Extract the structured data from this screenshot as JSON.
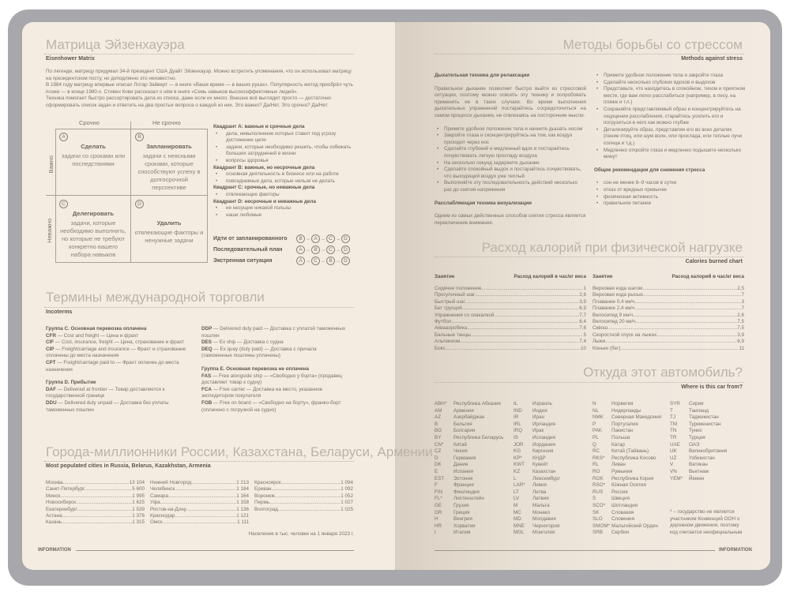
{
  "eisenhower": {
    "title": "Матрица Эйзенхауэра",
    "subtitle": "Eisenhower Matrix",
    "paragraphs": [
      "По легенде, матрицу придумал 34-й президент США Дуайт Эйзенхауэр. Можно встретить упоминания, что он использовал матрицу на президентском посту, но доподлинно это неизвестно.",
      "В 1984 году матрицу впервые описал Лотар Зайверт — в книге «Ваше время — в ваших руках». Популярность метод приобрёл чуть позже — в конце 1980-х. Стивен Кови рассказал о нём в книге «Семь навыков высокоэффективных людей».",
      "Техника помогает быстро рассортировать дела из списка, даже если их много. Внешне всё выглядит просто — достаточно сформировать список задач и ответить на два простых вопроса о каждой из них. Это важно? Да/Нет. Это срочно? Да/Нет"
    ],
    "col_labels": [
      "Срочно",
      "Не срочно"
    ],
    "row_labels": [
      "Важно",
      "Неважно"
    ],
    "quadrants": [
      {
        "letter": "A",
        "title": "Сделать",
        "text": "задачи со сроками или последствиями"
      },
      {
        "letter": "B",
        "title": "Запланировать",
        "text": "задачи с неясными сроками, которые способствуют успеху в долгосрочной перспективе"
      },
      {
        "letter": "C",
        "title": "Делегировать",
        "text": "задачи, которые необходимо выполнить, но которые не требуют конкретно вашего набора навыков"
      },
      {
        "letter": "D",
        "title": "Удалить",
        "text": "отвлекающие факторы и ненужные задачи"
      }
    ],
    "quadrant_notes": [
      {
        "title": "Квадрант А: важные и срочные дела",
        "items": [
          "дела, невыполнение которых ставит под угрозу достижение цели",
          "задачи, которые необходимо решить, чтобы избежать больших затруднений в жизни",
          "вопросы здоровья"
        ]
      },
      {
        "title": "Квадрант B: важные, но несрочные дела",
        "items": [
          "основная деятельность в бизнесе или на работе",
          "повседневные дела, которые нельзя не делать"
        ]
      },
      {
        "title": "Квадрант C: срочные, но неважные дела",
        "items": [
          "отвлекающие факторы"
        ]
      },
      {
        "title": "Квадрант D: несрочные и неважные дела",
        "items": [
          "не несущие никакой пользы",
          "наши любимые"
        ]
      }
    ],
    "sequences": [
      {
        "label": "Идти от запланированного",
        "order": [
          "B",
          "A",
          "C",
          "D"
        ]
      },
      {
        "label": "Последовательный план",
        "order": [
          "A",
          "B",
          "C",
          "D"
        ]
      },
      {
        "label": "Экстренная ситуация",
        "order": [
          "A",
          "C",
          "B",
          "D"
        ]
      }
    ]
  },
  "incoterms": {
    "title": "Термины международной торговли",
    "subtitle": "Incoterms",
    "left": [
      {
        "group": "Группа C. Основная перевозка оплачена"
      },
      {
        "code": "CFR",
        "text": " — Cost and freight — Цена и фрахт"
      },
      {
        "code": "CIF",
        "text": " — Cost, insurance, freight — Цена, страхование и фрахт"
      },
      {
        "code": "CIP",
        "text": " — Freight/carriage and insurance — Фрахт и страхование оплачены до места назначения"
      },
      {
        "code": "CPT",
        "text": " — Freight/carriage paid to — Фрахт оплачен до места назначения"
      },
      {
        "gap": true
      },
      {
        "group": "Группа D. Прибытие"
      },
      {
        "code": "DAF",
        "text": " — Delivered at frontier — Товар доставляется к государственной границе"
      },
      {
        "code": "DDU",
        "text": " — Delivered duty unpaid — Доставка без уплаты таможенных пошлин"
      }
    ],
    "right": [
      {
        "code": "DDP",
        "text": " — Delivered duty paid — Доставка с уплатой таможенных пошлин"
      },
      {
        "code": "DES",
        "text": " — Ex ship — Доставка с судна"
      },
      {
        "code": "DEQ",
        "text": " — Ex quay (duty paid) — Доставка с причала (таможенные пошлины уплачены)"
      },
      {
        "gap": true
      },
      {
        "group": "Группа E. Основная перевозка не оплачена"
      },
      {
        "code": "FAS",
        "text": " — Free alongside ship — «Свободно у борта» (продавец доставляет товар к судну)"
      },
      {
        "code": "FCA",
        "text": " — Free carrier — Доставка на место, указанное экспедитором покупателя"
      },
      {
        "code": "FOB",
        "text": " — Free on board — «Свободно на борту», франко-борт (оплачено с погрузкой на судно)"
      }
    ]
  },
  "cities": {
    "title": "Города-миллионники России, Казахстана, Беларуси, Армении",
    "subtitle": "Most populated cities in Russia, Belarus, Kazakhstan, Armenia",
    "columns": [
      [
        [
          "Москва",
          "13 104"
        ],
        [
          "Санкт-Петербург",
          "5 600"
        ],
        [
          "Минск",
          "1 995"
        ],
        [
          "Новосибирск",
          "1 625"
        ],
        [
          "Екатеринбург",
          "1 539"
        ],
        [
          "Астана",
          "1 376"
        ],
        [
          "Казань",
          "1 315"
        ]
      ],
      [
        [
          "Нижний Новгород",
          "1 213"
        ],
        [
          "Челябинск",
          "1 184"
        ],
        [
          "Самара",
          "1 164"
        ],
        [
          "Уфа",
          "1 158"
        ],
        [
          "Ростов-на-Дону",
          "1 136"
        ],
        [
          "Краснодар",
          "1 121"
        ],
        [
          "Омск",
          "1 111"
        ]
      ],
      [
        [
          "Красноярск",
          "1 094"
        ],
        [
          "Ереван",
          "1 092"
        ],
        [
          "Воронеж",
          "1 052"
        ],
        [
          "Пермь",
          "1 027"
        ],
        [
          "Волгоград",
          "1 025"
        ]
      ]
    ],
    "note": "Население в тыс. человек на 1 января 2023 г."
  },
  "stress": {
    "title": "Методы борьбы со стрессом",
    "subtitle": "Methods against stress",
    "breathing_title": "Дыхательная техника для релаксации",
    "breathing_intro": "Правильное дыхание позволяет быстро выйти из стрессовой ситуации, поэтому можно освоить эту технику и попробовать применить ее в таких случаях. Во время выполнения дыхательных упражнений постарайтесь сосредоточиться на самом процессе дыхания, не отвлекаясь на посторонние мысли.",
    "breathing_steps": [
      "Примите удобное положение тела и начните дышать носом",
      "Закройте глаза и сконцентрируйтесь на том, как воздух проходит через нос",
      "Сделайте глубокий и медленный вдох и постарайтесь почувствовать легкую прохладу воздуха",
      "На несколько секунд задержите дыхание",
      "Сделайте спокойный выдох и постарайтесь почувствовать, что выходящий воздух уже теплый",
      "Выполняйте эту последовательность действий несколько раз до снятия напряжения"
    ],
    "visual_title": "Расслабляющая техника визуализации",
    "visual_intro": "Одним из самых действенных способов снятия стресса является переключение внимания.",
    "visual_steps": [
      "Примите удобное положение тела и закройте глаза",
      "Сделайте несколько глубоких вдохов и выдохов",
      "Представьте, что находитесь в спокойном, тихом и приятном месте, где вам легко расслабиться (например, в лесу, на пляже и т.п.)",
      "Сохраняйте представляемый образ и концентрируйтесь на ощущении расслабления, старайтесь усилить его и погрузиться в него как можно глубже",
      "Детализируйте образ, представляя его во всех деталях (пение птиц, или шум волн, или прохлада, или теплые лучи солнца и т.д.)",
      "Медленно откройте глаза и медленно подышите несколько минут"
    ],
    "general_title": "Общие рекомендации для снижения стресса",
    "general": [
      "сон не менее 8–9 часов в сутки",
      "отказ от вредных привычек",
      "физическая активность",
      "правильное питание"
    ]
  },
  "calories": {
    "title": "Расход калорий при физической нагрузке",
    "subtitle": "Calories burned chart",
    "col_activity": "Занятие",
    "col_value": "Расход калорий в час/кг веса",
    "columns": [
      [
        [
          "Сидячее положение",
          "1"
        ],
        [
          "Прогулочный шаг",
          "2,6"
        ],
        [
          "Быстрый шаг",
          "3,9"
        ],
        [
          "Бег трусцой",
          "6,9"
        ],
        [
          "Упражнения со скакалкой",
          "7,7"
        ],
        [
          "Футбол",
          "6,4"
        ],
        [
          "Аквааэробика",
          "7,6"
        ],
        [
          "Бальные танцы",
          "5"
        ],
        [
          "Альпинизм",
          "7,4"
        ],
        [
          "Бокс",
          "10"
        ]
      ],
      [
        [
          "Верховая езда шагом",
          "2,5"
        ],
        [
          "Верховая езда рысью",
          "7"
        ],
        [
          "Плавание 0,4 км/ч",
          "3"
        ],
        [
          "Плавание 2,4 км/ч",
          "7"
        ],
        [
          "Велосипед 9 км/ч",
          "2,6"
        ],
        [
          "Велосипед 20 км/ч",
          "7,5"
        ],
        [
          "Сквош",
          "7,5"
        ],
        [
          "Скоростной спуск на лыжах",
          "3,9"
        ],
        [
          "Лыжи",
          "6,9"
        ],
        [
          "Коньки (бег)",
          "11"
        ]
      ]
    ]
  },
  "cars": {
    "title": "Откуда этот автомобиль?",
    "subtitle": "Where is this car from?",
    "columns": [
      [
        [
          "ABH*",
          "Республика Абхазия"
        ],
        [
          "AM",
          "Армения"
        ],
        [
          "AZ",
          "Азербайджан"
        ],
        [
          "B",
          "Бельгия"
        ],
        [
          "BG",
          "Болгария"
        ],
        [
          "BY",
          "Республика Беларусь"
        ],
        [
          "CN*",
          "Китай"
        ],
        [
          "CZ",
          "Чехия"
        ],
        [
          "D",
          "Германия"
        ],
        [
          "DK",
          "Дания"
        ],
        [
          "E",
          "Испания"
        ],
        [
          "EST",
          "Эстония"
        ],
        [
          "F",
          "Франция"
        ],
        [
          "FIN",
          "Финляндия"
        ],
        [
          "FL*",
          "Лихтенштейн"
        ],
        [
          "GE",
          "Грузия"
        ],
        [
          "GR",
          "Греция"
        ],
        [
          "H",
          "Венгрия"
        ],
        [
          "HR",
          "Хорватия"
        ],
        [
          "I",
          "Италия"
        ]
      ],
      [
        [
          "IL",
          "Израиль"
        ],
        [
          "IND",
          "Индия"
        ],
        [
          "IR",
          "Иран"
        ],
        [
          "IRL",
          "Ирландия"
        ],
        [
          "IRQ",
          "Ирак"
        ],
        [
          "IS",
          "Исландия"
        ],
        [
          "JOR",
          "Иордания"
        ],
        [
          "KG",
          "Киргизия"
        ],
        [
          "KP*",
          "КНДР"
        ],
        [
          "KWT",
          "Кувейт"
        ],
        [
          "KZ",
          "Казахстан"
        ],
        [
          "L",
          "Люксембург"
        ],
        [
          "LAR*",
          "Ливия"
        ],
        [
          "LT",
          "Литва"
        ],
        [
          "LV",
          "Латвия"
        ],
        [
          "M",
          "Мальта"
        ],
        [
          "MC",
          "Монако"
        ],
        [
          "MD",
          "Молдавия"
        ],
        [
          "MNE",
          "Черногория"
        ],
        [
          "MGL",
          "Монголия"
        ]
      ],
      [
        [
          "N",
          "Норвегия"
        ],
        [
          "NL",
          "Нидерланды"
        ],
        [
          "NMK",
          "Северная Македония"
        ],
        [
          "P",
          "Португалия"
        ],
        [
          "PAK",
          "Пакистан"
        ],
        [
          "PL",
          "Польша"
        ],
        [
          "Q",
          "Катар"
        ],
        [
          "RC",
          "Китай (Тайвань)"
        ],
        [
          "RKS*",
          "Республика Косово"
        ],
        [
          "RL",
          "Ливан"
        ],
        [
          "RO",
          "Румыния"
        ],
        [
          "ROK",
          "Республика Корея"
        ],
        [
          "RSO*",
          "Южная Осетия"
        ],
        [
          "RUS",
          "Россия"
        ],
        [
          "S",
          "Швеция"
        ],
        [
          "SCO*",
          "Шотландия"
        ],
        [
          "SK",
          "Словакия"
        ],
        [
          "SLO",
          "Словения"
        ],
        [
          "SMOM*",
          "Мальтийский Орден"
        ],
        [
          "SRB",
          "Сербия"
        ]
      ],
      [
        [
          "SYR",
          "Сирия"
        ],
        [
          "T",
          "Таиланд"
        ],
        [
          "TJ",
          "Таджикистан"
        ],
        [
          "TM",
          "Туркменистан"
        ],
        [
          "TN",
          "Тунис"
        ],
        [
          "TR",
          "Турция"
        ],
        [
          "UAE",
          "ОАЭ"
        ],
        [
          "UK",
          "Великобритания"
        ],
        [
          "UZ",
          "Узбекистан"
        ],
        [
          "V",
          "Ватикан"
        ],
        [
          "VN",
          "Вьетнам"
        ],
        [
          "YEM*",
          "Йемен"
        ]
      ]
    ],
    "footnote": "* – государство не является участником Конвенций ООН о дорожном движении, поэтому код считается неофициальным"
  },
  "footer": {
    "left": "INFORMATION",
    "right": "INFORMATION"
  }
}
